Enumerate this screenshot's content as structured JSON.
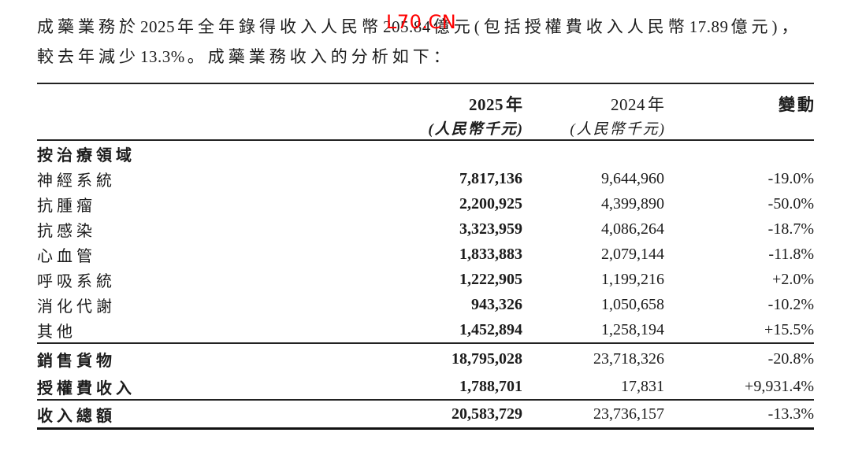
{
  "watermark": {
    "text": "L70.CN",
    "color": "#ff0000"
  },
  "paragraph": {
    "line1": "成藥業務於2025年全年錄得收入人民幣205.84億元(包括授權費收入人民幣17.89億元)，",
    "line2": "較去年減少13.3%。成藥業務收入的分析如下："
  },
  "table": {
    "header": {
      "col2025": "2025年",
      "col2024": "2024年",
      "colChange": "變動",
      "sub2025": "(人民幣千元)",
      "sub2024": "(人民幣千元)"
    },
    "section_header": "按治療領域",
    "rows": [
      {
        "label": "神經系統",
        "y2025": "7,817,136",
        "y2024": "9,644,960",
        "change": "-19.0%"
      },
      {
        "label": "抗腫瘤",
        "y2025": "2,200,925",
        "y2024": "4,399,890",
        "change": "-50.0%"
      },
      {
        "label": "抗感染",
        "y2025": "3,323,959",
        "y2024": "4,086,264",
        "change": "-18.7%"
      },
      {
        "label": "心血管",
        "y2025": "1,833,883",
        "y2024": "2,079,144",
        "change": "-11.8%"
      },
      {
        "label": "呼吸系統",
        "y2025": "1,222,905",
        "y2024": "1,199,216",
        "change": "+2.0%"
      },
      {
        "label": "消化代謝",
        "y2025": "943,326",
        "y2024": "1,050,658",
        "change": "-10.2%"
      },
      {
        "label": "其他",
        "y2025": "1,452,894",
        "y2024": "1,258,194",
        "change": "+15.5%"
      }
    ],
    "subtotal_rows": [
      {
        "label": "銷售貨物",
        "y2025": "18,795,028",
        "y2024": "23,718,326",
        "change": "-20.8%"
      },
      {
        "label": "授權費收入",
        "y2025": "1,788,701",
        "y2024": "17,831",
        "change": "+9,931.4%"
      }
    ],
    "total_row": {
      "label": "收入總額",
      "y2025": "20,583,729",
      "y2024": "23,736,157",
      "change": "-13.3%"
    }
  }
}
